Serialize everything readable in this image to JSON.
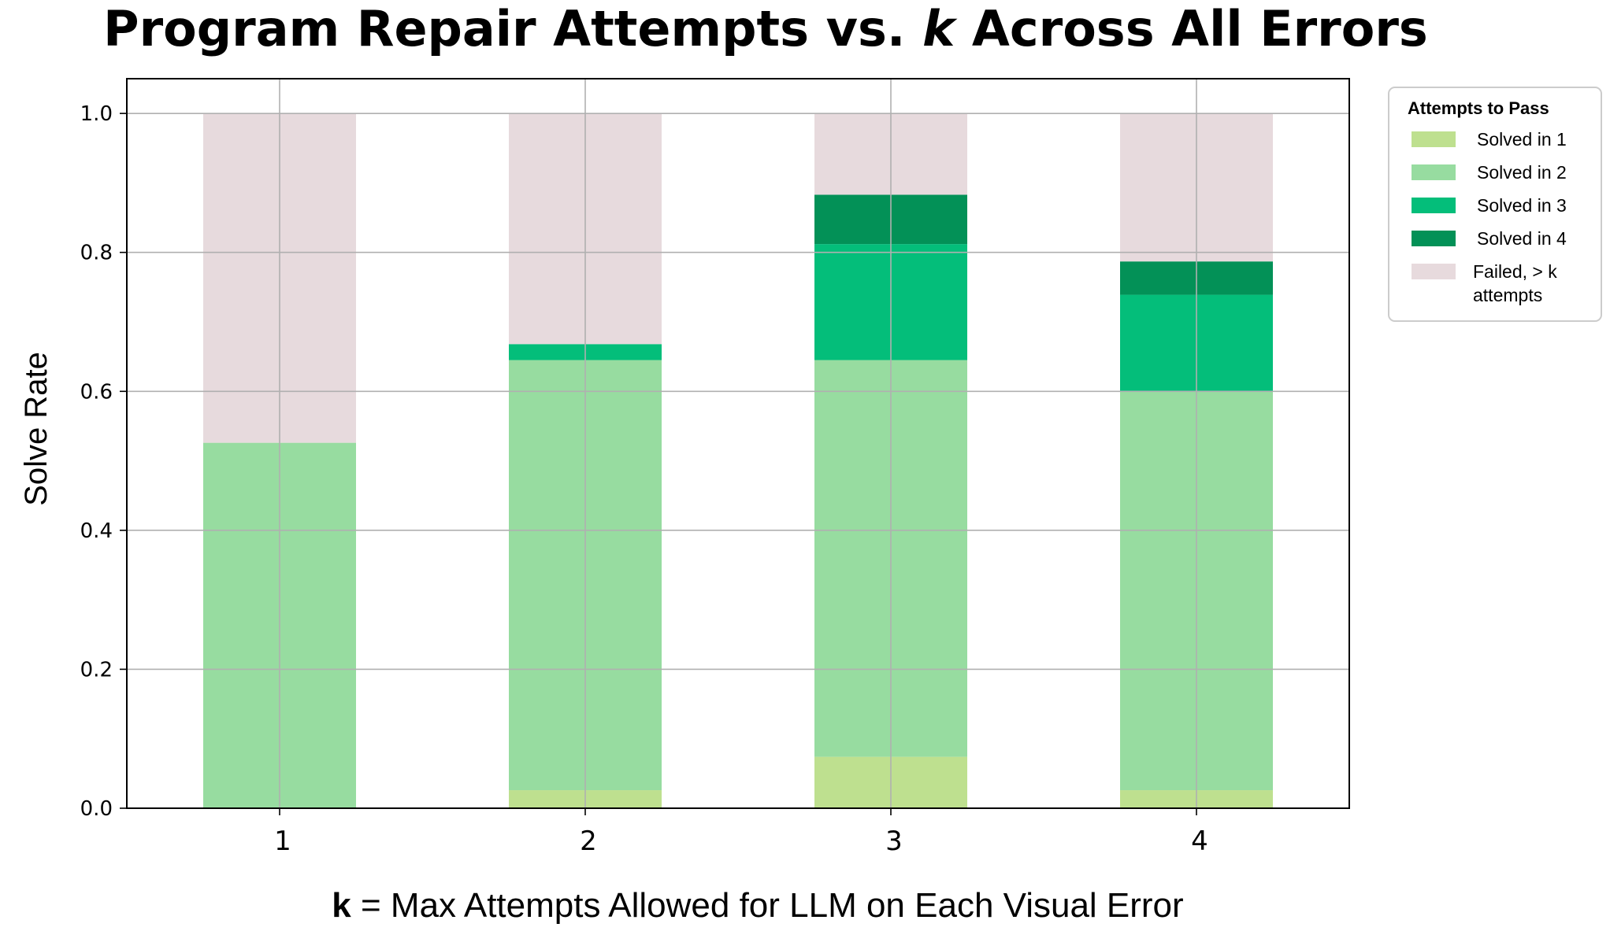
{
  "chart_data": {
    "type": "bar",
    "stacked": true,
    "title_parts": [
      "Program Repair Attempts vs. ",
      "k",
      " Across All Errors"
    ],
    "xlabel_parts": [
      "k",
      " = Max Attempts Allowed for LLM on Each Visual Error"
    ],
    "ylabel": "Solve Rate",
    "categories": [
      "1",
      "2",
      "3",
      "4"
    ],
    "ylim": [
      0.0,
      1.05
    ],
    "yticks": [
      "0.0",
      "0.2",
      "0.4",
      "0.6",
      "0.8",
      "1.0"
    ],
    "grid": true,
    "legend": {
      "title": "Attempts to Pass",
      "placement": "outside-right-top",
      "entries": [
        {
          "label": "Solved in 1",
          "color": "#bee08f"
        },
        {
          "label": "Solved in 2",
          "color": "#97dca0"
        },
        {
          "label": "Solved in 3",
          "color": "#04be7a"
        },
        {
          "label": "Solved in 4",
          "color": "#039157"
        },
        {
          "label": "Failed, > k attempts",
          "lines": [
            "Failed, > k",
            "attempts"
          ],
          "color": "#e7dadd"
        }
      ]
    },
    "series": [
      {
        "name": "Solved in 1",
        "color": "#bee08f",
        "values": [
          0.0,
          0.026,
          0.074,
          0.026
        ]
      },
      {
        "name": "Solved in 2",
        "color": "#97dca0",
        "values": [
          0.526,
          0.619,
          0.571,
          0.574
        ]
      },
      {
        "name": "Solved in 3",
        "color": "#04be7a",
        "values": [
          0.0,
          0.023,
          0.167,
          0.139
        ]
      },
      {
        "name": "Solved in 4",
        "color": "#039157",
        "values": [
          0.0,
          0.0,
          0.071,
          0.048
        ]
      },
      {
        "name": "Failed, > k attempts",
        "color": "#e7dadd",
        "values": [
          0.474,
          0.332,
          0.117,
          0.213
        ]
      }
    ]
  },
  "colors": {
    "grid": "#b0b0b0",
    "axis": "#000000",
    "legend_border": "#cccccc"
  }
}
